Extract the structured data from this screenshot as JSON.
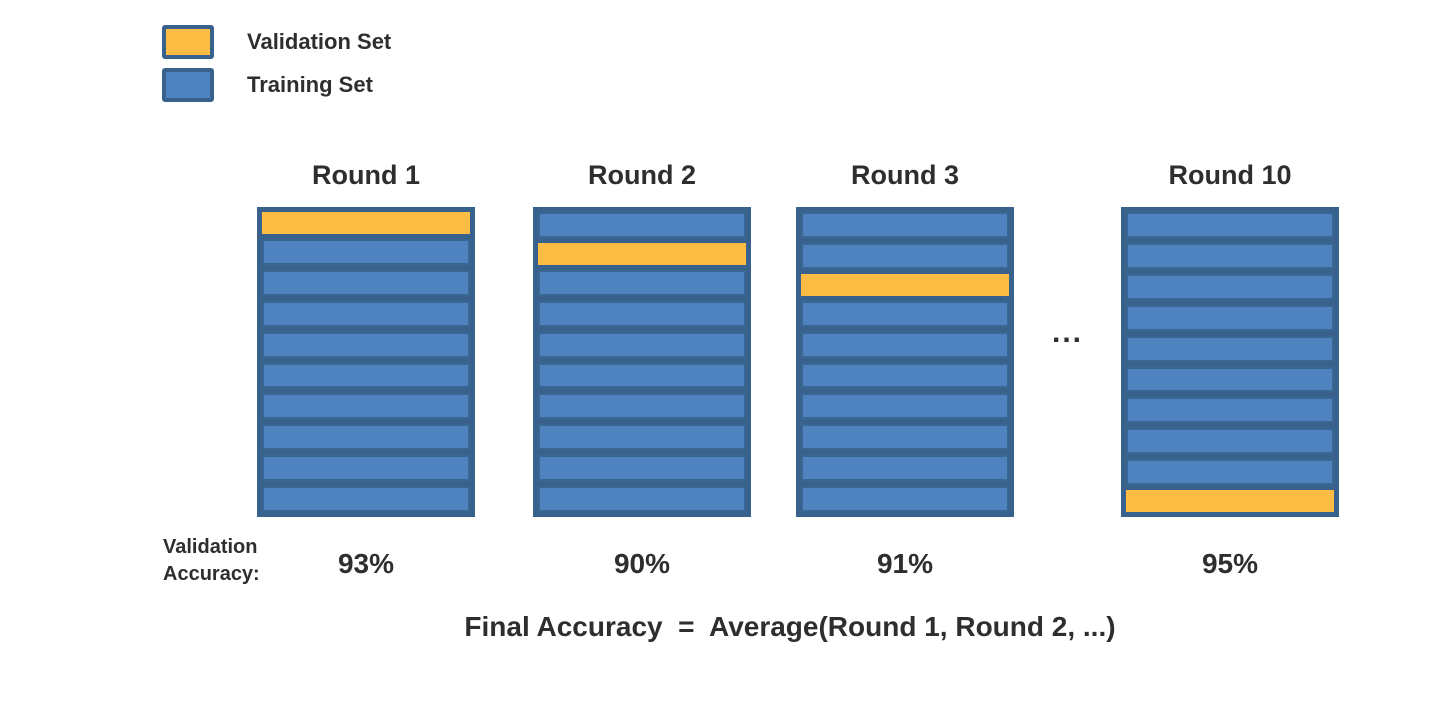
{
  "colors": {
    "validation": "#FDBD45",
    "training": "#4F83BF",
    "training_border": "#3A6694",
    "frame": "#38618C",
    "text": "#2E2E2E"
  },
  "legend": {
    "items": [
      {
        "id": "validation",
        "label": "Validation Set"
      },
      {
        "id": "training",
        "label": "Training Set"
      }
    ]
  },
  "diagram": {
    "folds_per_round": 10,
    "rounds": [
      {
        "title": "Round 1",
        "validation_fold_index": 0,
        "accuracy": "93%"
      },
      {
        "title": "Round 2",
        "validation_fold_index": 1,
        "accuracy": "90%"
      },
      {
        "title": "Round 3",
        "validation_fold_index": 2,
        "accuracy": "91%"
      },
      {
        "title": "Round 10",
        "validation_fold_index": 9,
        "accuracy": "95%"
      }
    ],
    "ellipsis": "...",
    "accuracy_label_lines": [
      "Validation",
      "Accuracy:"
    ],
    "formula": "Final Accuracy  =  Average(Round 1, Round 2, ...)"
  }
}
